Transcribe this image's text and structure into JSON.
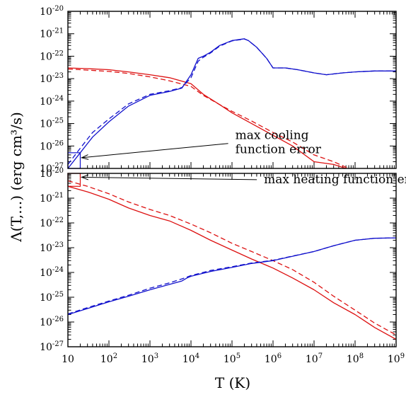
{
  "chart_data": {
    "type": "line",
    "xlabel": "T (K)",
    "ylabel": "Λ(T,...) (erg cm³/s)",
    "x_scale": "log",
    "y_scale": "log",
    "xlim": [
      10,
      1000000000
    ],
    "x_ticks": [
      {
        "value": 10,
        "base": "10",
        "exp": ""
      },
      {
        "value": 100,
        "base": "10",
        "exp": "2"
      },
      {
        "value": 1000,
        "base": "10",
        "exp": "3"
      },
      {
        "value": 10000,
        "base": "10",
        "exp": "4"
      },
      {
        "value": 100000,
        "base": "10",
        "exp": "5"
      },
      {
        "value": 1000000,
        "base": "10",
        "exp": "6"
      },
      {
        "value": 10000000,
        "base": "10",
        "exp": "7"
      },
      {
        "value": 100000000,
        "base": "10",
        "exp": "8"
      },
      {
        "value": 1000000000,
        "base": "10",
        "exp": "9"
      }
    ],
    "colors": {
      "cooling": "#dd1111",
      "heating": "#1111cc"
    },
    "panels": [
      {
        "name": "top",
        "ylim": [
          1e-27,
          1e-20
        ],
        "y_ticks": [
          {
            "value": 1e-20,
            "base": "10",
            "exp": "-20"
          },
          {
            "value": 1e-21,
            "base": "10",
            "exp": "-21"
          },
          {
            "value": 1e-22,
            "base": "10",
            "exp": "-22"
          },
          {
            "value": 1e-23,
            "base": "10",
            "exp": "-23"
          },
          {
            "value": 1e-24,
            "base": "10",
            "exp": "-24"
          },
          {
            "value": 1e-25,
            "base": "10",
            "exp": "-25"
          },
          {
            "value": 1e-26,
            "base": "10",
            "exp": "-26"
          },
          {
            "value": 1e-27,
            "base": "10",
            "exp": "-27"
          }
        ],
        "series": [
          {
            "color": "cooling",
            "style": "solid",
            "x": [
              10,
              30,
              100,
              300,
              1000,
              3000,
              10000,
              20000,
              50000,
              100000,
              300000,
              1000000,
              3000000,
              10000000,
              30000000,
              60000000
            ],
            "y": [
              3e-23,
              2.8e-23,
              2.5e-23,
              2e-23,
              1.5e-23,
              1.1e-23,
              6e-24,
              2e-24,
              7e-25,
              3e-25,
              1e-25,
              3e-26,
              1e-26,
              2e-27,
              1.5e-27,
              1e-27
            ]
          },
          {
            "color": "cooling",
            "style": "dashed",
            "x": [
              10,
              30,
              100,
              300,
              1000,
              3000,
              10000,
              20000,
              50000,
              100000,
              300000,
              1000000,
              3000000,
              10000000,
              30000000,
              70000000
            ],
            "y": [
              2.7e-23,
              2.4e-23,
              2.1e-23,
              1.7e-23,
              1.2e-23,
              8e-24,
              4.5e-24,
              1.8e-24,
              7e-25,
              3.5e-25,
              1.3e-25,
              4e-26,
              1.5e-26,
              4e-27,
              2e-27,
              1e-27
            ]
          },
          {
            "color": "heating",
            "style": "solid",
            "x": [
              10,
              20,
              40,
              100,
              300,
              1000,
              3000,
              6000,
              10000,
              15000,
              20000,
              30000,
              50000,
              100000,
              200000,
              250000,
              400000,
              700000,
              1000000,
              2000000,
              4000000,
              10000000,
              20000000,
              50000000,
              100000000,
              300000000,
              1000000000
            ],
            "y": [
              1e-27,
              5e-27,
              2.5e-26,
              1.2e-25,
              6e-25,
              1.8e-24,
              2.7e-24,
              3.8e-24,
              1.5e-23,
              8e-23,
              1e-22,
              1.5e-22,
              3e-22,
              5e-22,
              6e-22,
              5e-22,
              2.5e-22,
              8e-23,
              3e-23,
              3e-23,
              2.5e-23,
              1.8e-23,
              1.5e-23,
              1.8e-23,
              2e-23,
              2.2e-23,
              2.2e-23
            ]
          },
          {
            "color": "heating",
            "style": "dashed",
            "x": [
              10,
              20,
              40,
              100,
              300,
              1000,
              3000,
              6000,
              10000,
              15000,
              20000,
              30000,
              50000,
              100000,
              200000,
              250000,
              400000,
              700000,
              1000000,
              2000000,
              4000000,
              10000000,
              20000000,
              50000000,
              100000000,
              300000000,
              1000000000
            ],
            "y": [
              1.5e-27,
              8e-27,
              4e-26,
              1.6e-25,
              7.5e-25,
              2e-24,
              2.9e-24,
              4e-24,
              1.1e-23,
              6e-23,
              9e-23,
              1.4e-22,
              2.8e-22,
              4.8e-22,
              5.8e-22,
              5e-22,
              2.5e-22,
              8e-23,
              3e-23,
              3e-23,
              2.5e-23,
              1.8e-23,
              1.5e-23,
              1.8e-23,
              2e-23,
              2.2e-23,
              2.2e-23
            ]
          }
        ],
        "error_box": {
          "color": "heating",
          "x": [
            10,
            20
          ],
          "y": [
            1e-27,
            5e-27
          ]
        },
        "annotation": {
          "lines": [
            "max cooling",
            "function error"
          ],
          "arrow_to": [
            20,
            3e-27
          ],
          "text_x": 120000,
          "text_y": 2e-26
        }
      },
      {
        "name": "bottom",
        "ylim": [
          1e-27,
          1e-20
        ],
        "y_ticks": [
          {
            "value": 1e-20,
            "base": "10",
            "exp": "-20"
          },
          {
            "value": 1e-21,
            "base": "10",
            "exp": "-21"
          },
          {
            "value": 1e-22,
            "base": "10",
            "exp": "-22"
          },
          {
            "value": 1e-23,
            "base": "10",
            "exp": "-23"
          },
          {
            "value": 1e-24,
            "base": "10",
            "exp": "-24"
          },
          {
            "value": 1e-25,
            "base": "10",
            "exp": "-25"
          },
          {
            "value": 1e-26,
            "base": "10",
            "exp": "-26"
          },
          {
            "value": 1e-27,
            "base": "10",
            "exp": "-27"
          }
        ],
        "series": [
          {
            "color": "cooling",
            "style": "solid",
            "x": [
              10,
              30,
              100,
              300,
              1000,
              3000,
              10000,
              30000,
              100000,
              300000,
              1000000,
              3000000,
              10000000,
              30000000,
              100000000,
              300000000,
              1000000000
            ],
            "y": [
              3e-21,
              1.8e-21,
              9e-22,
              4e-22,
              2e-22,
              1.2e-22,
              5e-23,
              2e-23,
              8e-24,
              3.5e-24,
              1.5e-24,
              6e-25,
              2e-25,
              6e-26,
              2e-26,
              6e-27,
              2e-27
            ]
          },
          {
            "color": "cooling",
            "style": "dashed",
            "x": [
              10,
              30,
              100,
              300,
              1000,
              3000,
              10000,
              30000,
              100000,
              300000,
              1000000,
              3000000,
              10000000,
              30000000,
              100000000,
              300000000,
              1000000000
            ],
            "y": [
              5e-21,
              3e-21,
              1.5e-21,
              7e-22,
              3.5e-22,
              2e-22,
              9e-23,
              4e-23,
              1.5e-23,
              7e-24,
              3e-24,
              1.3e-24,
              4e-25,
              1.1e-25,
              3e-26,
              9e-27,
              3e-27
            ]
          },
          {
            "color": "heating",
            "style": "solid",
            "x": [
              10,
              30,
              100,
              300,
              1000,
              3000,
              6000,
              8000,
              10000,
              30000,
              100000,
              300000,
              1000000,
              3000000,
              10000000,
              30000000,
              100000000,
              300000000,
              1000000000
            ],
            "y": [
              2e-26,
              3.5e-26,
              6.5e-26,
              1.1e-25,
              2e-25,
              3.3e-25,
              4.5e-25,
              6e-25,
              7e-25,
              1.1e-24,
              1.6e-24,
              2.3e-24,
              3e-24,
              4.5e-24,
              7e-24,
              1.2e-23,
              2e-23,
              2.4e-23,
              2.5e-23
            ]
          },
          {
            "color": "heating",
            "style": "dashed",
            "x": [
              10,
              30,
              100,
              300,
              1000,
              3000,
              6000,
              8000,
              10000,
              30000,
              100000,
              300000,
              1000000,
              3000000,
              10000000,
              30000000,
              100000000,
              300000000,
              1000000000
            ],
            "y": [
              2.1e-26,
              3.8e-26,
              7e-26,
              1.2e-25,
              2.3e-25,
              3.8e-25,
              5.5e-25,
              6.5e-25,
              7.5e-25,
              1.2e-24,
              1.7e-24,
              2.4e-24,
              3.1e-24,
              4.6e-24,
              7e-24,
              1.2e-23,
              2e-23,
              2.4e-23,
              2.5e-23
            ]
          }
        ],
        "error_box": {
          "color": "cooling",
          "x": [
            10,
            20
          ],
          "y": [
            3e-21,
            1e-20
          ]
        },
        "annotation": {
          "lines": [
            "max heating function error"
          ],
          "arrow_to": [
            20,
            7e-21
          ],
          "text_x": 600000,
          "text_y": 4e-21
        }
      }
    ]
  }
}
